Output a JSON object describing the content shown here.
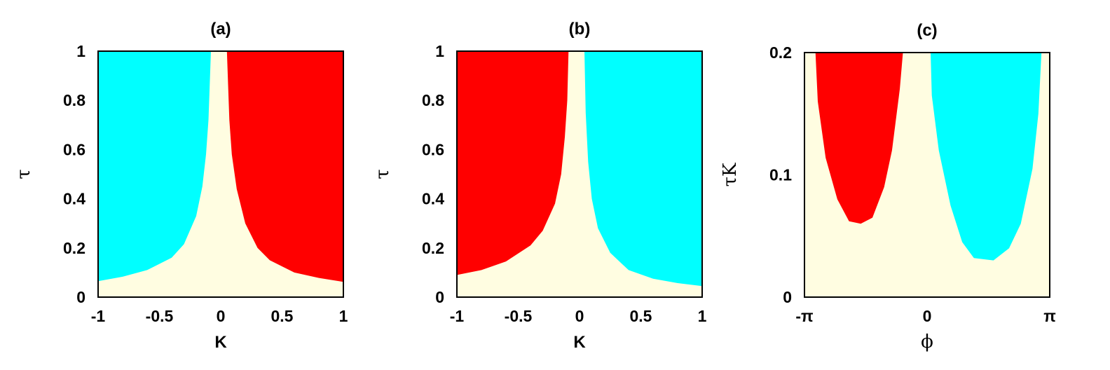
{
  "colors": {
    "cyan": "#00ffff",
    "red": "#ff0000",
    "cream": "#fffde1",
    "frame": "#000000"
  },
  "chart_data": [
    {
      "type": "heatmap",
      "title": "(a)",
      "xlabel": "K",
      "ylabel": "τ",
      "xlim": [
        -1,
        1
      ],
      "ylim": [
        0,
        1
      ],
      "xticks": [
        {
          "v": -1,
          "label": "-1"
        },
        {
          "v": -0.5,
          "label": "-0.5"
        },
        {
          "v": 0,
          "label": "0"
        },
        {
          "v": 0.5,
          "label": "0.5"
        },
        {
          "v": 1,
          "label": "1"
        }
      ],
      "yticks": [
        {
          "v": 0,
          "label": "0"
        },
        {
          "v": 0.2,
          "label": "0.2"
        },
        {
          "v": 0.4,
          "label": "0.4"
        },
        {
          "v": 0.6,
          "label": "0.6"
        },
        {
          "v": 0.8,
          "label": "0.8"
        },
        {
          "v": 1,
          "label": "1"
        }
      ],
      "background": "cream",
      "regions": [
        {
          "color": "cyan",
          "side": "left",
          "boundary": [
            [
              -1,
              0.065
            ],
            [
              -0.8,
              0.083
            ],
            [
              -0.6,
              0.11
            ],
            [
              -0.4,
              0.16
            ],
            [
              -0.3,
              0.215
            ],
            [
              -0.2,
              0.33
            ],
            [
              -0.15,
              0.45
            ],
            [
              -0.12,
              0.58
            ],
            [
              -0.1,
              0.72
            ],
            [
              -0.08,
              1.0
            ]
          ]
        },
        {
          "color": "red",
          "side": "right",
          "boundary": [
            [
              0.05,
              1.0
            ],
            [
              0.07,
              0.72
            ],
            [
              0.09,
              0.58
            ],
            [
              0.13,
              0.44
            ],
            [
              0.2,
              0.3
            ],
            [
              0.3,
              0.2
            ],
            [
              0.4,
              0.15
            ],
            [
              0.6,
              0.1
            ],
            [
              0.8,
              0.078
            ],
            [
              1,
              0.062
            ]
          ]
        }
      ]
    },
    {
      "type": "heatmap",
      "title": "(b)",
      "xlabel": "K",
      "ylabel": "τ",
      "xlim": [
        -1,
        1
      ],
      "ylim": [
        0,
        1
      ],
      "xticks": [
        {
          "v": -1,
          "label": "-1"
        },
        {
          "v": -0.5,
          "label": "-0.5"
        },
        {
          "v": 0,
          "label": "0"
        },
        {
          "v": 0.5,
          "label": "0.5"
        },
        {
          "v": 1,
          "label": "1"
        }
      ],
      "yticks": [
        {
          "v": 0,
          "label": "0"
        },
        {
          "v": 0.2,
          "label": "0.2"
        },
        {
          "v": 0.4,
          "label": "0.4"
        },
        {
          "v": 0.6,
          "label": "0.6"
        },
        {
          "v": 0.8,
          "label": "0.8"
        },
        {
          "v": 1,
          "label": "1"
        }
      ],
      "background": "cream",
      "regions": [
        {
          "color": "red",
          "side": "left",
          "boundary": [
            [
              -1,
              0.09
            ],
            [
              -0.8,
              0.11
            ],
            [
              -0.6,
              0.145
            ],
            [
              -0.4,
              0.21
            ],
            [
              -0.3,
              0.27
            ],
            [
              -0.2,
              0.38
            ],
            [
              -0.15,
              0.5
            ],
            [
              -0.12,
              0.65
            ],
            [
              -0.1,
              0.8
            ],
            [
              -0.09,
              1.0
            ]
          ]
        },
        {
          "color": "cyan",
          "side": "right",
          "boundary": [
            [
              0.04,
              1.0
            ],
            [
              0.05,
              0.75
            ],
            [
              0.07,
              0.55
            ],
            [
              0.1,
              0.4
            ],
            [
              0.15,
              0.28
            ],
            [
              0.25,
              0.18
            ],
            [
              0.4,
              0.11
            ],
            [
              0.6,
              0.075
            ],
            [
              0.8,
              0.057
            ],
            [
              1,
              0.045
            ]
          ]
        }
      ]
    },
    {
      "type": "heatmap",
      "title": "(c)",
      "xlabel": "ϕ",
      "ylabel": "τK",
      "xlim": [
        -3.1416,
        3.1416
      ],
      "ylim": [
        0,
        0.2
      ],
      "xticks": [
        {
          "v": -3.1416,
          "label": "-π"
        },
        {
          "v": 0,
          "label": "0"
        },
        {
          "v": 3.1416,
          "label": "π"
        }
      ],
      "yticks": [
        {
          "v": 0,
          "label": "0"
        },
        {
          "v": 0.1,
          "label": "0.1"
        },
        {
          "v": 0.2,
          "label": "0.2"
        }
      ],
      "background": "cream",
      "regions": [
        {
          "color": "red",
          "side": "band",
          "boundary": [
            [
              -2.86,
              0.2
            ],
            [
              -2.8,
              0.16
            ],
            [
              -2.6,
              0.114
            ],
            [
              -2.3,
              0.08
            ],
            [
              -2.0,
              0.062
            ],
            [
              -1.7,
              0.06
            ],
            [
              -1.4,
              0.065
            ],
            [
              -1.1,
              0.09
            ],
            [
              -0.9,
              0.12
            ],
            [
              -0.7,
              0.17
            ],
            [
              -0.62,
              0.2
            ]
          ]
        },
        {
          "color": "cyan",
          "side": "band",
          "boundary": [
            [
              0.09,
              0.2
            ],
            [
              0.12,
              0.165
            ],
            [
              0.3,
              0.12
            ],
            [
              0.6,
              0.075
            ],
            [
              0.9,
              0.045
            ],
            [
              1.2,
              0.032
            ],
            [
              1.7,
              0.03
            ],
            [
              2.1,
              0.04
            ],
            [
              2.4,
              0.06
            ],
            [
              2.7,
              0.105
            ],
            [
              2.85,
              0.15
            ],
            [
              2.93,
              0.2
            ]
          ]
        }
      ]
    }
  ]
}
